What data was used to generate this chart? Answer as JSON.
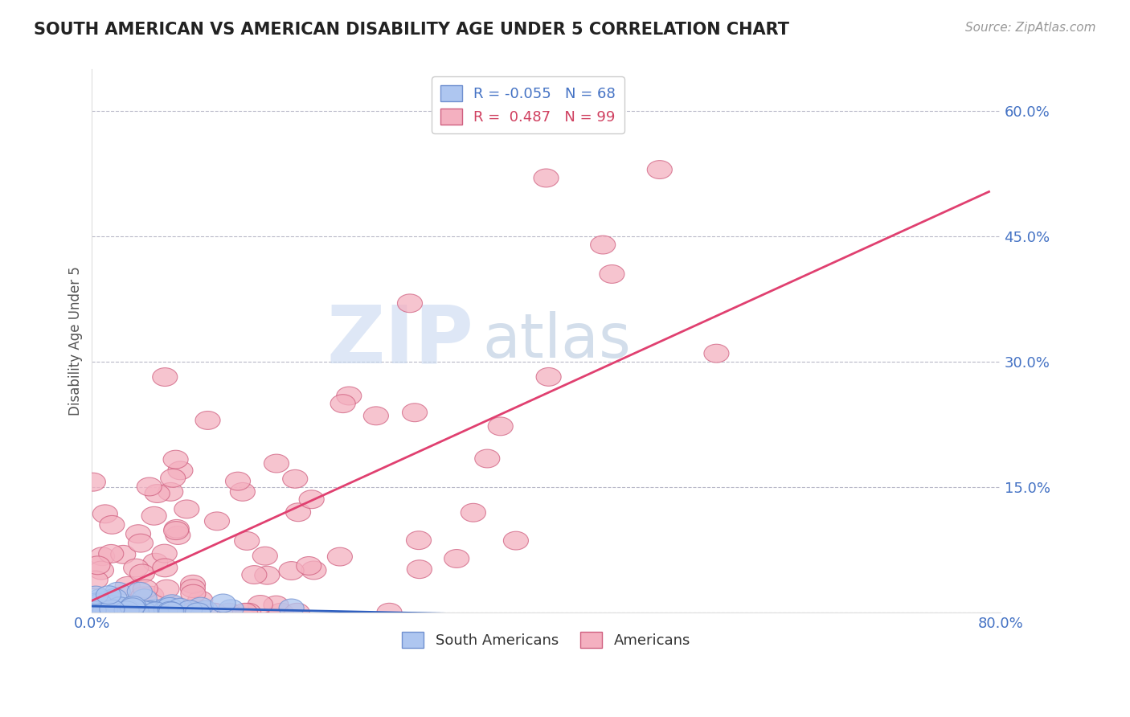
{
  "title": "SOUTH AMERICAN VS AMERICAN DISABILITY AGE UNDER 5 CORRELATION CHART",
  "source": "Source: ZipAtlas.com",
  "ylabel": "Disability Age Under 5",
  "xlim": [
    0.0,
    0.8
  ],
  "ylim": [
    0.0,
    0.65
  ],
  "ytick_vals": [
    0.0,
    0.15,
    0.3,
    0.45,
    0.6
  ],
  "ytick_labels": [
    "",
    "15.0%",
    "30.0%",
    "45.0%",
    "60.0%"
  ],
  "xtick_vals": [
    0.0,
    0.8
  ],
  "xtick_labels": [
    "0.0%",
    "80.0%"
  ],
  "bg_color": "#ffffff",
  "grid_color": "#b8b8c8",
  "sa_color": "#aec6f0",
  "sa_edge": "#7090d0",
  "am_color": "#f4b0c0",
  "am_edge": "#d06080",
  "sa_line_color": "#3060c0",
  "am_line_color": "#e04070",
  "watermark_zip": "ZIP",
  "watermark_atlas": "atlas",
  "zip_color": "#ccd8ee",
  "atlas_color": "#b8c8e0",
  "legend_r1": "R = -0.055",
  "legend_n1": "N = 68",
  "legend_r2": "R =  0.487",
  "legend_n2": "N = 99",
  "legend_text_color1": "#4472c4",
  "legend_text_color2": "#d04060",
  "sa_R": -0.055,
  "sa_N": 68,
  "am_R": 0.487,
  "am_N": 99,
  "sa_seed": 10,
  "am_seed": 7
}
